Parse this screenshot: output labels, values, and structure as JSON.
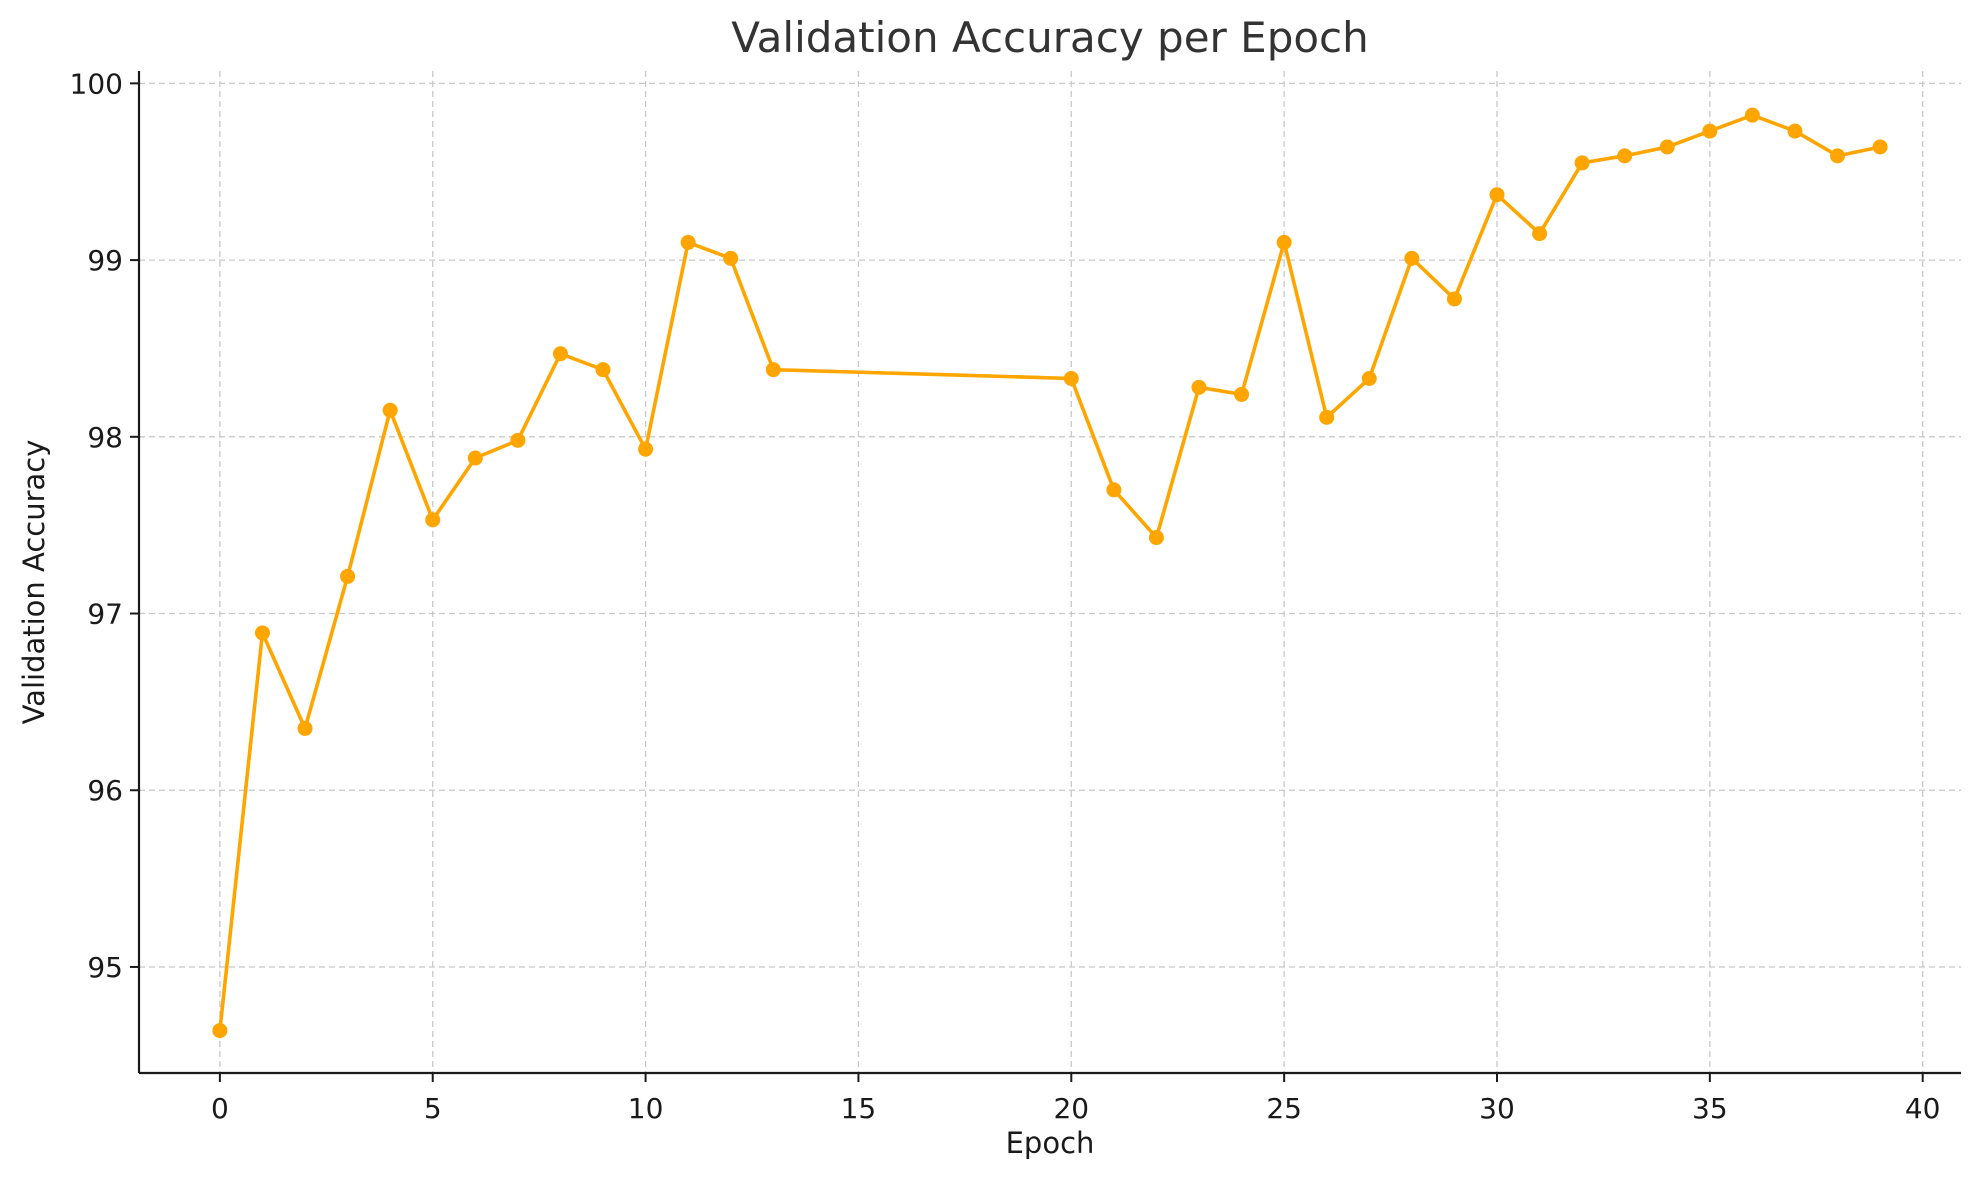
{
  "chart_data": {
    "type": "line",
    "title": "Validation Accuracy per Epoch",
    "xlabel": "Epoch",
    "ylabel": "Validation Accuracy",
    "xlim": [
      -1.9,
      40.9
    ],
    "ylim": [
      94.4,
      100.07
    ],
    "xticks": [
      0,
      5,
      10,
      15,
      20,
      25,
      30,
      35,
      40
    ],
    "yticks": [
      95,
      96,
      97,
      98,
      99,
      100
    ],
    "grid": true,
    "line_color": "#FFA500",
    "series": [
      {
        "x": [
          0,
          1,
          2,
          3,
          4,
          5,
          6,
          7,
          8,
          9,
          10,
          11,
          12,
          13,
          20,
          21,
          22,
          23,
          24,
          25,
          26,
          27,
          28,
          29,
          30,
          31,
          32,
          33,
          34,
          35,
          36,
          37,
          38,
          39
        ],
        "values": [
          94.64,
          96.89,
          96.35,
          97.21,
          98.15,
          97.53,
          97.88,
          97.98,
          98.47,
          98.38,
          97.93,
          99.1,
          99.01,
          98.38,
          98.33,
          97.7,
          97.43,
          98.28,
          98.24,
          99.1,
          98.11,
          98.33,
          99.01,
          98.78,
          99.37,
          99.15,
          99.55,
          99.59,
          99.64,
          99.73,
          99.82,
          99.73,
          99.59,
          99.64
        ]
      }
    ]
  }
}
